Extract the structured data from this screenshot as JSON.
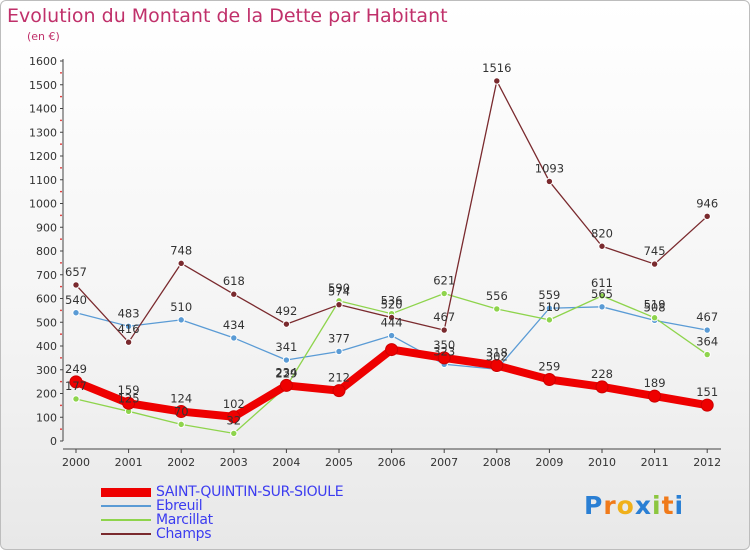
{
  "title": "Evolution du Montant de la Dette par Habitant",
  "unit_label": "(en €)",
  "logo": {
    "text": "Proxiti",
    "letters": [
      {
        "ch": "P",
        "color": "#2a7fd4"
      },
      {
        "ch": "r",
        "color": "#f07a1a"
      },
      {
        "ch": "o",
        "color": "#f0b01a"
      },
      {
        "ch": "x",
        "color": "#2a7fd4"
      },
      {
        "ch": "i",
        "color": "#8cc63f"
      },
      {
        "ch": "t",
        "color": "#f07a1a"
      },
      {
        "ch": "i",
        "color": "#2a7fd4"
      }
    ]
  },
  "chart_data": {
    "type": "line",
    "title": "Evolution du Montant de la Dette par Habitant",
    "ylabel": "(en €)",
    "ylim": [
      0,
      1600
    ],
    "yticks": [
      0,
      100,
      200,
      300,
      400,
      500,
      600,
      700,
      800,
      900,
      1000,
      1100,
      1200,
      1300,
      1400,
      1500,
      1600
    ],
    "x": [
      "2000",
      "2001",
      "2002",
      "2003",
      "2004",
      "2005",
      "2006",
      "2007",
      "2008",
      "2009",
      "2010",
      "2011",
      "2012"
    ],
    "grid": false,
    "legend_position": "bottom-left",
    "series": [
      {
        "name": "SAINT-QUINTIN-SUR-SIOULE",
        "color": "#ee0000",
        "emphasis": true,
        "values": [
          249,
          159,
          124,
          102,
          234,
          212,
          385,
          350,
          318,
          259,
          228,
          189,
          151
        ],
        "labels": [
          "249",
          "159",
          "124",
          "102",
          "234",
          "212",
          "",
          "350",
          "318",
          "259",
          "228",
          "189",
          "151"
        ]
      },
      {
        "name": "Ebreuil",
        "color": "#5a9bd5",
        "values": [
          540,
          483,
          510,
          434,
          341,
          377,
          444,
          323,
          302,
          559,
          565,
          508,
          467
        ],
        "labels": [
          "540",
          "483",
          "510",
          "434",
          "341",
          "377",
          "444",
          "323",
          "302",
          "559",
          "565",
          "508",
          "467"
        ]
      },
      {
        "name": "Marcillat",
        "color": "#8ed44c",
        "values": [
          177,
          125,
          70,
          32,
          229,
          590,
          536,
          621,
          556,
          510,
          611,
          519,
          364
        ],
        "labels": [
          "177",
          "125",
          "70",
          "32",
          "229",
          "590",
          "536",
          "621",
          "556",
          "510",
          "611",
          "519",
          "364"
        ]
      },
      {
        "name": "Champs",
        "color": "#7a2a2e",
        "values": [
          657,
          416,
          748,
          618,
          492,
          574,
          520,
          467,
          1516,
          1093,
          820,
          745,
          946
        ],
        "labels": [
          "657",
          "416",
          "748",
          "618",
          "492",
          "574",
          "520",
          "467",
          "1516",
          "1093",
          "820",
          "745",
          "946"
        ]
      }
    ]
  }
}
